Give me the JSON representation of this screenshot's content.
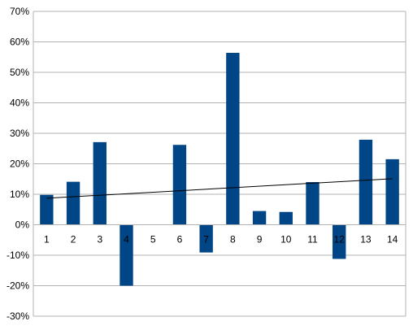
{
  "chart_data": {
    "type": "bar",
    "categories": [
      "1",
      "2",
      "3",
      "4",
      "5",
      "6",
      "7",
      "8",
      "9",
      "10",
      "11",
      "12",
      "13",
      "14"
    ],
    "series": [
      {
        "values": [
          9.8,
          14.1,
          27.1,
          -20.0,
          0.0,
          26.2,
          -9.1,
          56.4,
          4.5,
          4.2,
          14.0,
          -11.2,
          27.9,
          21.5
        ]
      }
    ],
    "trendline": {
      "type": "linear",
      "start": 8.7,
      "end": 15.1
    },
    "ylim": [
      -30,
      70
    ],
    "yticks": [
      -30,
      -20,
      -10,
      0,
      10,
      20,
      30,
      40,
      50,
      60,
      70
    ],
    "ytick_suffix": "%",
    "grid": true,
    "legend": "none",
    "colors": {
      "bar": "#004586",
      "grid": "#b3b3b3",
      "axis": "#b3b3b3",
      "trend": "#000000"
    }
  }
}
